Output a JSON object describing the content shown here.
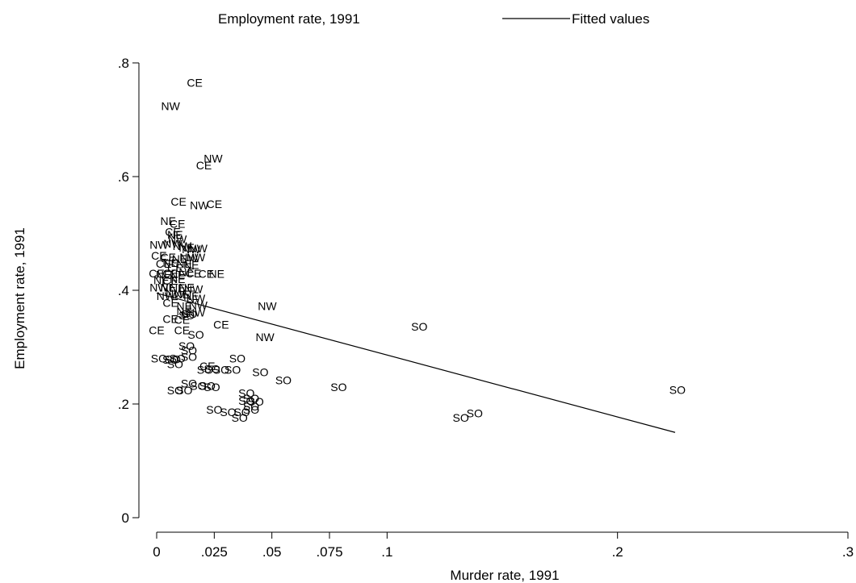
{
  "chart_data": {
    "type": "scatter",
    "xlabel": "Murder rate, 1991",
    "ylabel": "Employment rate, 1991",
    "xlim": [
      0,
      0.3
    ],
    "ylim": [
      0,
      0.8
    ],
    "x_ticks": [
      {
        "value": 0,
        "label": "0"
      },
      {
        "value": 0.025,
        "label": ".025"
      },
      {
        "value": 0.05,
        "label": ".05"
      },
      {
        "value": 0.075,
        "label": ".075"
      },
      {
        "value": 0.1,
        "label": ".1"
      },
      {
        "value": 0.2,
        "label": ".2"
      },
      {
        "value": 0.3,
        "label": ".3"
      }
    ],
    "y_ticks": [
      {
        "value": 0,
        "label": "0"
      },
      {
        "value": 0.2,
        "label": ".2"
      },
      {
        "value": 0.4,
        "label": ".4"
      },
      {
        "value": 0.6,
        "label": ".6"
      },
      {
        "value": 0.8,
        "label": ".8"
      }
    ],
    "legend": {
      "placement": "top",
      "entries": [
        {
          "label": "Employment rate, 1991",
          "marker": "none"
        },
        {
          "label": "Fitted values",
          "marker": "line"
        }
      ]
    },
    "fitted_line": {
      "x": [
        0,
        0.225
      ],
      "y": [
        0.395,
        0.15
      ]
    },
    "series": [
      {
        "name": "Employment rate, 1991",
        "marker": "region-label",
        "points": [
          {
            "x": 0.0165,
            "y": 0.765,
            "label": "CE"
          },
          {
            "x": 0.006,
            "y": 0.724,
            "label": "NW"
          },
          {
            "x": 0.0245,
            "y": 0.632,
            "label": "NW"
          },
          {
            "x": 0.0205,
            "y": 0.62,
            "label": "CE"
          },
          {
            "x": 0.0095,
            "y": 0.556,
            "label": "CE"
          },
          {
            "x": 0.0185,
            "y": 0.55,
            "label": "NW"
          },
          {
            "x": 0.025,
            "y": 0.552,
            "label": "CE"
          },
          {
            "x": 0.005,
            "y": 0.522,
            "label": "NE"
          },
          {
            "x": 0.009,
            "y": 0.517,
            "label": "CE"
          },
          {
            "x": 0.007,
            "y": 0.503,
            "label": "CE"
          },
          {
            "x": 0.008,
            "y": 0.498,
            "label": "NE"
          },
          {
            "x": 0.009,
            "y": 0.49,
            "label": "NW"
          },
          {
            "x": 0.001,
            "y": 0.48,
            "label": "NW"
          },
          {
            "x": 0.007,
            "y": 0.482,
            "label": "NW"
          },
          {
            "x": 0.011,
            "y": 0.478,
            "label": "NW"
          },
          {
            "x": 0.013,
            "y": 0.475,
            "label": "NE"
          },
          {
            "x": 0.015,
            "y": 0.472,
            "label": "NW"
          },
          {
            "x": 0.018,
            "y": 0.474,
            "label": "NW"
          },
          {
            "x": 0.001,
            "y": 0.461,
            "label": "CE"
          },
          {
            "x": 0.005,
            "y": 0.458,
            "label": "CE"
          },
          {
            "x": 0.01,
            "y": 0.455,
            "label": "NE"
          },
          {
            "x": 0.014,
            "y": 0.458,
            "label": "NW"
          },
          {
            "x": 0.017,
            "y": 0.458,
            "label": "NW"
          },
          {
            "x": 0.003,
            "y": 0.447,
            "label": "CE"
          },
          {
            "x": 0.006,
            "y": 0.448,
            "label": "NE"
          },
          {
            "x": 0.012,
            "y": 0.447,
            "label": "NE"
          },
          {
            "x": 0.015,
            "y": 0.445,
            "label": "NE"
          },
          {
            "x": 0.008,
            "y": 0.44,
            "label": "CE"
          },
          {
            "x": 0.0,
            "y": 0.43,
            "label": "CE"
          },
          {
            "x": 0.003,
            "y": 0.428,
            "label": "NE"
          },
          {
            "x": 0.006,
            "y": 0.43,
            "label": "CE"
          },
          {
            "x": 0.009,
            "y": 0.428,
            "label": "NE"
          },
          {
            "x": 0.013,
            "y": 0.432,
            "label": "NE"
          },
          {
            "x": 0.016,
            "y": 0.43,
            "label": "CE"
          },
          {
            "x": 0.0215,
            "y": 0.429,
            "label": "CE"
          },
          {
            "x": 0.026,
            "y": 0.429,
            "label": "NE"
          },
          {
            "x": 0.002,
            "y": 0.418,
            "label": "NE"
          },
          {
            "x": 0.006,
            "y": 0.417,
            "label": "CE"
          },
          {
            "x": 0.009,
            "y": 0.42,
            "label": "NE"
          },
          {
            "x": 0.001,
            "y": 0.405,
            "label": "NW"
          },
          {
            "x": 0.005,
            "y": 0.405,
            "label": "NE"
          },
          {
            "x": 0.009,
            "y": 0.404,
            "label": "NE"
          },
          {
            "x": 0.013,
            "y": 0.405,
            "label": "NE"
          },
          {
            "x": 0.016,
            "y": 0.402,
            "label": "NW"
          },
          {
            "x": 0.004,
            "y": 0.39,
            "label": "NW"
          },
          {
            "x": 0.008,
            "y": 0.394,
            "label": "NW"
          },
          {
            "x": 0.011,
            "y": 0.393,
            "label": "NE"
          },
          {
            "x": 0.015,
            "y": 0.39,
            "label": "NE"
          },
          {
            "x": 0.017,
            "y": 0.386,
            "label": "NW"
          },
          {
            "x": 0.006,
            "y": 0.378,
            "label": "CE"
          },
          {
            "x": 0.012,
            "y": 0.372,
            "label": "NE"
          },
          {
            "x": 0.018,
            "y": 0.374,
            "label": "NW"
          },
          {
            "x": 0.012,
            "y": 0.363,
            "label": "NE"
          },
          {
            "x": 0.014,
            "y": 0.358,
            "label": "SO"
          },
          {
            "x": 0.017,
            "y": 0.361,
            "label": "NW"
          },
          {
            "x": 0.013,
            "y": 0.356,
            "label": "SO"
          },
          {
            "x": 0.006,
            "y": 0.35,
            "label": "CE"
          },
          {
            "x": 0.011,
            "y": 0.348,
            "label": "CE"
          },
          {
            "x": 0.0,
            "y": 0.33,
            "label": "CE"
          },
          {
            "x": 0.011,
            "y": 0.33,
            "label": "CE"
          },
          {
            "x": 0.017,
            "y": 0.322,
            "label": "SO"
          },
          {
            "x": 0.028,
            "y": 0.34,
            "label": "CE"
          },
          {
            "x": 0.048,
            "y": 0.372,
            "label": "NW"
          },
          {
            "x": 0.047,
            "y": 0.318,
            "label": "NW"
          },
          {
            "x": 0.114,
            "y": 0.336,
            "label": "SO"
          },
          {
            "x": 0.013,
            "y": 0.302,
            "label": "SO"
          },
          {
            "x": 0.014,
            "y": 0.294,
            "label": "SO"
          },
          {
            "x": 0.001,
            "y": 0.28,
            "label": "SO"
          },
          {
            "x": 0.006,
            "y": 0.278,
            "label": "SO"
          },
          {
            "x": 0.007,
            "y": 0.279,
            "label": "SO"
          },
          {
            "x": 0.009,
            "y": 0.28,
            "label": "SO"
          },
          {
            "x": 0.014,
            "y": 0.283,
            "label": "SO"
          },
          {
            "x": 0.008,
            "y": 0.27,
            "label": "SO"
          },
          {
            "x": 0.035,
            "y": 0.28,
            "label": "SO"
          },
          {
            "x": 0.022,
            "y": 0.267,
            "label": "CE"
          },
          {
            "x": 0.021,
            "y": 0.26,
            "label": "SO"
          },
          {
            "x": 0.024,
            "y": 0.262,
            "label": "SO"
          },
          {
            "x": 0.028,
            "y": 0.26,
            "label": "SO"
          },
          {
            "x": 0.033,
            "y": 0.26,
            "label": "SO"
          },
          {
            "x": 0.045,
            "y": 0.256,
            "label": "SO"
          },
          {
            "x": 0.055,
            "y": 0.242,
            "label": "SO"
          },
          {
            "x": 0.079,
            "y": 0.23,
            "label": "SO"
          },
          {
            "x": 0.014,
            "y": 0.236,
            "label": "SO"
          },
          {
            "x": 0.018,
            "y": 0.232,
            "label": "SO"
          },
          {
            "x": 0.022,
            "y": 0.232,
            "label": "SO"
          },
          {
            "x": 0.024,
            "y": 0.23,
            "label": "SO"
          },
          {
            "x": 0.008,
            "y": 0.224,
            "label": "SO"
          },
          {
            "x": 0.012,
            "y": 0.224,
            "label": "SO"
          },
          {
            "x": 0.039,
            "y": 0.219,
            "label": "SO"
          },
          {
            "x": 0.041,
            "y": 0.21,
            "label": "SO"
          },
          {
            "x": 0.039,
            "y": 0.206,
            "label": "SO"
          },
          {
            "x": 0.043,
            "y": 0.204,
            "label": "SO"
          },
          {
            "x": 0.041,
            "y": 0.196,
            "label": "SO"
          },
          {
            "x": 0.041,
            "y": 0.19,
            "label": "SO"
          },
          {
            "x": 0.025,
            "y": 0.19,
            "label": "SO"
          },
          {
            "x": 0.031,
            "y": 0.186,
            "label": "SO"
          },
          {
            "x": 0.037,
            "y": 0.186,
            "label": "SO"
          },
          {
            "x": 0.036,
            "y": 0.176,
            "label": "SO"
          },
          {
            "x": 0.132,
            "y": 0.176,
            "label": "SO"
          },
          {
            "x": 0.138,
            "y": 0.184,
            "label": "SO"
          },
          {
            "x": 0.226,
            "y": 0.225,
            "label": "SO"
          }
        ]
      }
    ]
  }
}
